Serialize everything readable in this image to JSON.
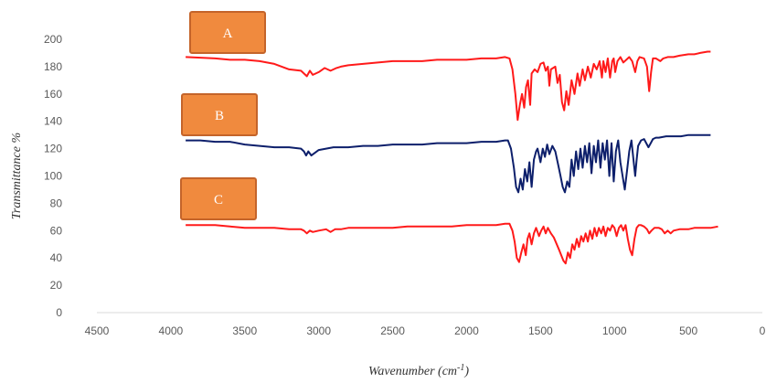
{
  "chart_data": {
    "type": "line",
    "title": "",
    "xlabel": "Wavenumber (cm",
    "xlabel_sup": "-1",
    "xlabel_close": ")",
    "ylabel": "Transmittance %",
    "xlim": [
      4500,
      0
    ],
    "ylim": [
      0,
      200
    ],
    "x_ticks": [
      4500,
      4000,
      3500,
      3000,
      2500,
      2000,
      1500,
      1000,
      500,
      0
    ],
    "y_ticks": [
      0,
      20,
      40,
      60,
      80,
      100,
      120,
      140,
      160,
      180,
      200
    ],
    "grid": false,
    "legend": "none",
    "series": [
      {
        "name": "A",
        "color": "#ff1a1a",
        "points": [
          [
            3900,
            187
          ],
          [
            3700,
            186
          ],
          [
            3600,
            185
          ],
          [
            3500,
            185
          ],
          [
            3400,
            184
          ],
          [
            3300,
            182
          ],
          [
            3200,
            178
          ],
          [
            3120,
            177
          ],
          [
            3100,
            175
          ],
          [
            3080,
            173
          ],
          [
            3060,
            177
          ],
          [
            3040,
            174
          ],
          [
            3000,
            176
          ],
          [
            2960,
            179
          ],
          [
            2920,
            177
          ],
          [
            2880,
            179
          ],
          [
            2850,
            180
          ],
          [
            2800,
            181
          ],
          [
            2700,
            182
          ],
          [
            2600,
            183
          ],
          [
            2500,
            184
          ],
          [
            2400,
            184
          ],
          [
            2300,
            184
          ],
          [
            2200,
            185
          ],
          [
            2100,
            185
          ],
          [
            2000,
            185
          ],
          [
            1900,
            186
          ],
          [
            1800,
            186
          ],
          [
            1740,
            187
          ],
          [
            1710,
            186
          ],
          [
            1690,
            178
          ],
          [
            1670,
            160
          ],
          [
            1655,
            141
          ],
          [
            1640,
            152
          ],
          [
            1625,
            160
          ],
          [
            1610,
            150
          ],
          [
            1598,
            165
          ],
          [
            1585,
            170
          ],
          [
            1570,
            152
          ],
          [
            1560,
            175
          ],
          [
            1540,
            178
          ],
          [
            1520,
            176
          ],
          [
            1500,
            182
          ],
          [
            1480,
            183
          ],
          [
            1465,
            177
          ],
          [
            1450,
            180
          ],
          [
            1440,
            166
          ],
          [
            1430,
            178
          ],
          [
            1400,
            180
          ],
          [
            1385,
            168
          ],
          [
            1370,
            174
          ],
          [
            1355,
            154
          ],
          [
            1340,
            148
          ],
          [
            1325,
            162
          ],
          [
            1310,
            152
          ],
          [
            1290,
            170
          ],
          [
            1270,
            160
          ],
          [
            1250,
            175
          ],
          [
            1235,
            166
          ],
          [
            1215,
            178
          ],
          [
            1200,
            170
          ],
          [
            1180,
            180
          ],
          [
            1160,
            172
          ],
          [
            1140,
            182
          ],
          [
            1120,
            178
          ],
          [
            1100,
            184
          ],
          [
            1085,
            172
          ],
          [
            1075,
            184
          ],
          [
            1060,
            176
          ],
          [
            1045,
            186
          ],
          [
            1030,
            172
          ],
          [
            1015,
            184
          ],
          [
            1005,
            186
          ],
          [
            995,
            176
          ],
          [
            980,
            184
          ],
          [
            960,
            187
          ],
          [
            940,
            183
          ],
          [
            920,
            185
          ],
          [
            900,
            187
          ],
          [
            880,
            184
          ],
          [
            860,
            176
          ],
          [
            845,
            184
          ],
          [
            830,
            187
          ],
          [
            800,
            186
          ],
          [
            780,
            180
          ],
          [
            765,
            162
          ],
          [
            752,
            176
          ],
          [
            740,
            186
          ],
          [
            720,
            186
          ],
          [
            690,
            184
          ],
          [
            670,
            186
          ],
          [
            640,
            187
          ],
          [
            600,
            187
          ],
          [
            560,
            188
          ],
          [
            500,
            189
          ],
          [
            460,
            189
          ],
          [
            420,
            190
          ],
          [
            370,
            191
          ],
          [
            350,
            191
          ]
        ]
      },
      {
        "name": "B",
        "color": "#0d1f6b",
        "points": [
          [
            3900,
            126
          ],
          [
            3800,
            126
          ],
          [
            3700,
            125
          ],
          [
            3600,
            125
          ],
          [
            3500,
            123
          ],
          [
            3400,
            122
          ],
          [
            3300,
            121
          ],
          [
            3200,
            121
          ],
          [
            3120,
            120
          ],
          [
            3100,
            118
          ],
          [
            3085,
            115
          ],
          [
            3070,
            118
          ],
          [
            3050,
            115
          ],
          [
            3000,
            119
          ],
          [
            2900,
            121
          ],
          [
            2800,
            121
          ],
          [
            2700,
            122
          ],
          [
            2600,
            122
          ],
          [
            2500,
            123
          ],
          [
            2400,
            123
          ],
          [
            2300,
            123
          ],
          [
            2200,
            124
          ],
          [
            2100,
            124
          ],
          [
            2000,
            124
          ],
          [
            1900,
            125
          ],
          [
            1800,
            125
          ],
          [
            1740,
            126
          ],
          [
            1720,
            126
          ],
          [
            1700,
            120
          ],
          [
            1680,
            106
          ],
          [
            1665,
            92
          ],
          [
            1650,
            88
          ],
          [
            1635,
            98
          ],
          [
            1620,
            90
          ],
          [
            1605,
            105
          ],
          [
            1590,
            96
          ],
          [
            1575,
            110
          ],
          [
            1560,
            92
          ],
          [
            1545,
            112
          ],
          [
            1530,
            118
          ],
          [
            1520,
            120
          ],
          [
            1500,
            110
          ],
          [
            1485,
            120
          ],
          [
            1470,
            114
          ],
          [
            1455,
            123
          ],
          [
            1440,
            116
          ],
          [
            1420,
            122
          ],
          [
            1400,
            118
          ],
          [
            1380,
            108
          ],
          [
            1365,
            100
          ],
          [
            1350,
            92
          ],
          [
            1335,
            88
          ],
          [
            1320,
            96
          ],
          [
            1305,
            92
          ],
          [
            1290,
            112
          ],
          [
            1275,
            100
          ],
          [
            1260,
            118
          ],
          [
            1245,
            105
          ],
          [
            1230,
            120
          ],
          [
            1215,
            106
          ],
          [
            1200,
            122
          ],
          [
            1185,
            110
          ],
          [
            1170,
            124
          ],
          [
            1155,
            102
          ],
          [
            1140,
            122
          ],
          [
            1125,
            110
          ],
          [
            1110,
            126
          ],
          [
            1095,
            106
          ],
          [
            1080,
            124
          ],
          [
            1065,
            112
          ],
          [
            1050,
            126
          ],
          [
            1035,
            100
          ],
          [
            1020,
            124
          ],
          [
            1005,
            96
          ],
          [
            990,
            118
          ],
          [
            975,
            126
          ],
          [
            960,
            110
          ],
          [
            945,
            100
          ],
          [
            930,
            90
          ],
          [
            915,
            104
          ],
          [
            900,
            118
          ],
          [
            885,
            126
          ],
          [
            870,
            110
          ],
          [
            860,
            100
          ],
          [
            850,
            112
          ],
          [
            840,
            122
          ],
          [
            820,
            126
          ],
          [
            800,
            127
          ],
          [
            770,
            121
          ],
          [
            755,
            124
          ],
          [
            740,
            127
          ],
          [
            720,
            128
          ],
          [
            700,
            128
          ],
          [
            650,
            129
          ],
          [
            600,
            129
          ],
          [
            550,
            129
          ],
          [
            500,
            130
          ],
          [
            450,
            130
          ],
          [
            400,
            130
          ],
          [
            350,
            130
          ]
        ]
      },
      {
        "name": "C",
        "color": "#ff1a1a",
        "points": [
          [
            3900,
            64
          ],
          [
            3800,
            64
          ],
          [
            3700,
            64
          ],
          [
            3600,
            63
          ],
          [
            3500,
            62
          ],
          [
            3400,
            62
          ],
          [
            3300,
            62
          ],
          [
            3200,
            61
          ],
          [
            3120,
            61
          ],
          [
            3100,
            60
          ],
          [
            3080,
            58
          ],
          [
            3060,
            60
          ],
          [
            3040,
            59
          ],
          [
            3000,
            60
          ],
          [
            2950,
            61
          ],
          [
            2920,
            59
          ],
          [
            2890,
            61
          ],
          [
            2850,
            61
          ],
          [
            2800,
            62
          ],
          [
            2700,
            62
          ],
          [
            2600,
            62
          ],
          [
            2500,
            62
          ],
          [
            2400,
            63
          ],
          [
            2300,
            63
          ],
          [
            2200,
            63
          ],
          [
            2100,
            63
          ],
          [
            2000,
            64
          ],
          [
            1900,
            64
          ],
          [
            1800,
            64
          ],
          [
            1740,
            65
          ],
          [
            1710,
            65
          ],
          [
            1690,
            60
          ],
          [
            1675,
            52
          ],
          [
            1660,
            40
          ],
          [
            1645,
            37
          ],
          [
            1630,
            44
          ],
          [
            1615,
            50
          ],
          [
            1600,
            42
          ],
          [
            1588,
            54
          ],
          [
            1575,
            58
          ],
          [
            1560,
            50
          ],
          [
            1545,
            58
          ],
          [
            1530,
            62
          ],
          [
            1510,
            56
          ],
          [
            1495,
            60
          ],
          [
            1480,
            63
          ],
          [
            1465,
            58
          ],
          [
            1450,
            62
          ],
          [
            1430,
            58
          ],
          [
            1410,
            55
          ],
          [
            1390,
            50
          ],
          [
            1375,
            46
          ],
          [
            1360,
            42
          ],
          [
            1345,
            38
          ],
          [
            1330,
            36
          ],
          [
            1315,
            44
          ],
          [
            1300,
            40
          ],
          [
            1285,
            50
          ],
          [
            1270,
            46
          ],
          [
            1255,
            54
          ],
          [
            1240,
            48
          ],
          [
            1225,
            56
          ],
          [
            1210,
            52
          ],
          [
            1195,
            58
          ],
          [
            1180,
            52
          ],
          [
            1165,
            60
          ],
          [
            1150,
            54
          ],
          [
            1135,
            62
          ],
          [
            1120,
            56
          ],
          [
            1105,
            62
          ],
          [
            1090,
            58
          ],
          [
            1075,
            63
          ],
          [
            1060,
            56
          ],
          [
            1045,
            62
          ],
          [
            1030,
            60
          ],
          [
            1015,
            64
          ],
          [
            1000,
            62
          ],
          [
            985,
            56
          ],
          [
            970,
            62
          ],
          [
            955,
            64
          ],
          [
            940,
            60
          ],
          [
            925,
            64
          ],
          [
            910,
            54
          ],
          [
            895,
            46
          ],
          [
            880,
            42
          ],
          [
            865,
            54
          ],
          [
            850,
            62
          ],
          [
            835,
            64
          ],
          [
            820,
            64
          ],
          [
            800,
            63
          ],
          [
            780,
            61
          ],
          [
            765,
            58
          ],
          [
            750,
            60
          ],
          [
            730,
            62
          ],
          [
            700,
            62
          ],
          [
            680,
            61
          ],
          [
            660,
            58
          ],
          [
            640,
            60
          ],
          [
            620,
            58
          ],
          [
            600,
            60
          ],
          [
            560,
            61
          ],
          [
            500,
            61
          ],
          [
            460,
            62
          ],
          [
            400,
            62
          ],
          [
            350,
            62
          ],
          [
            300,
            63
          ]
        ]
      }
    ],
    "annotations": [
      {
        "text": "A",
        "series": 0
      },
      {
        "text": "B",
        "series": 1
      },
      {
        "text": "C",
        "series": 2
      }
    ],
    "annotation_fill": "#f08a3e",
    "annotation_border": "#c4642a"
  }
}
